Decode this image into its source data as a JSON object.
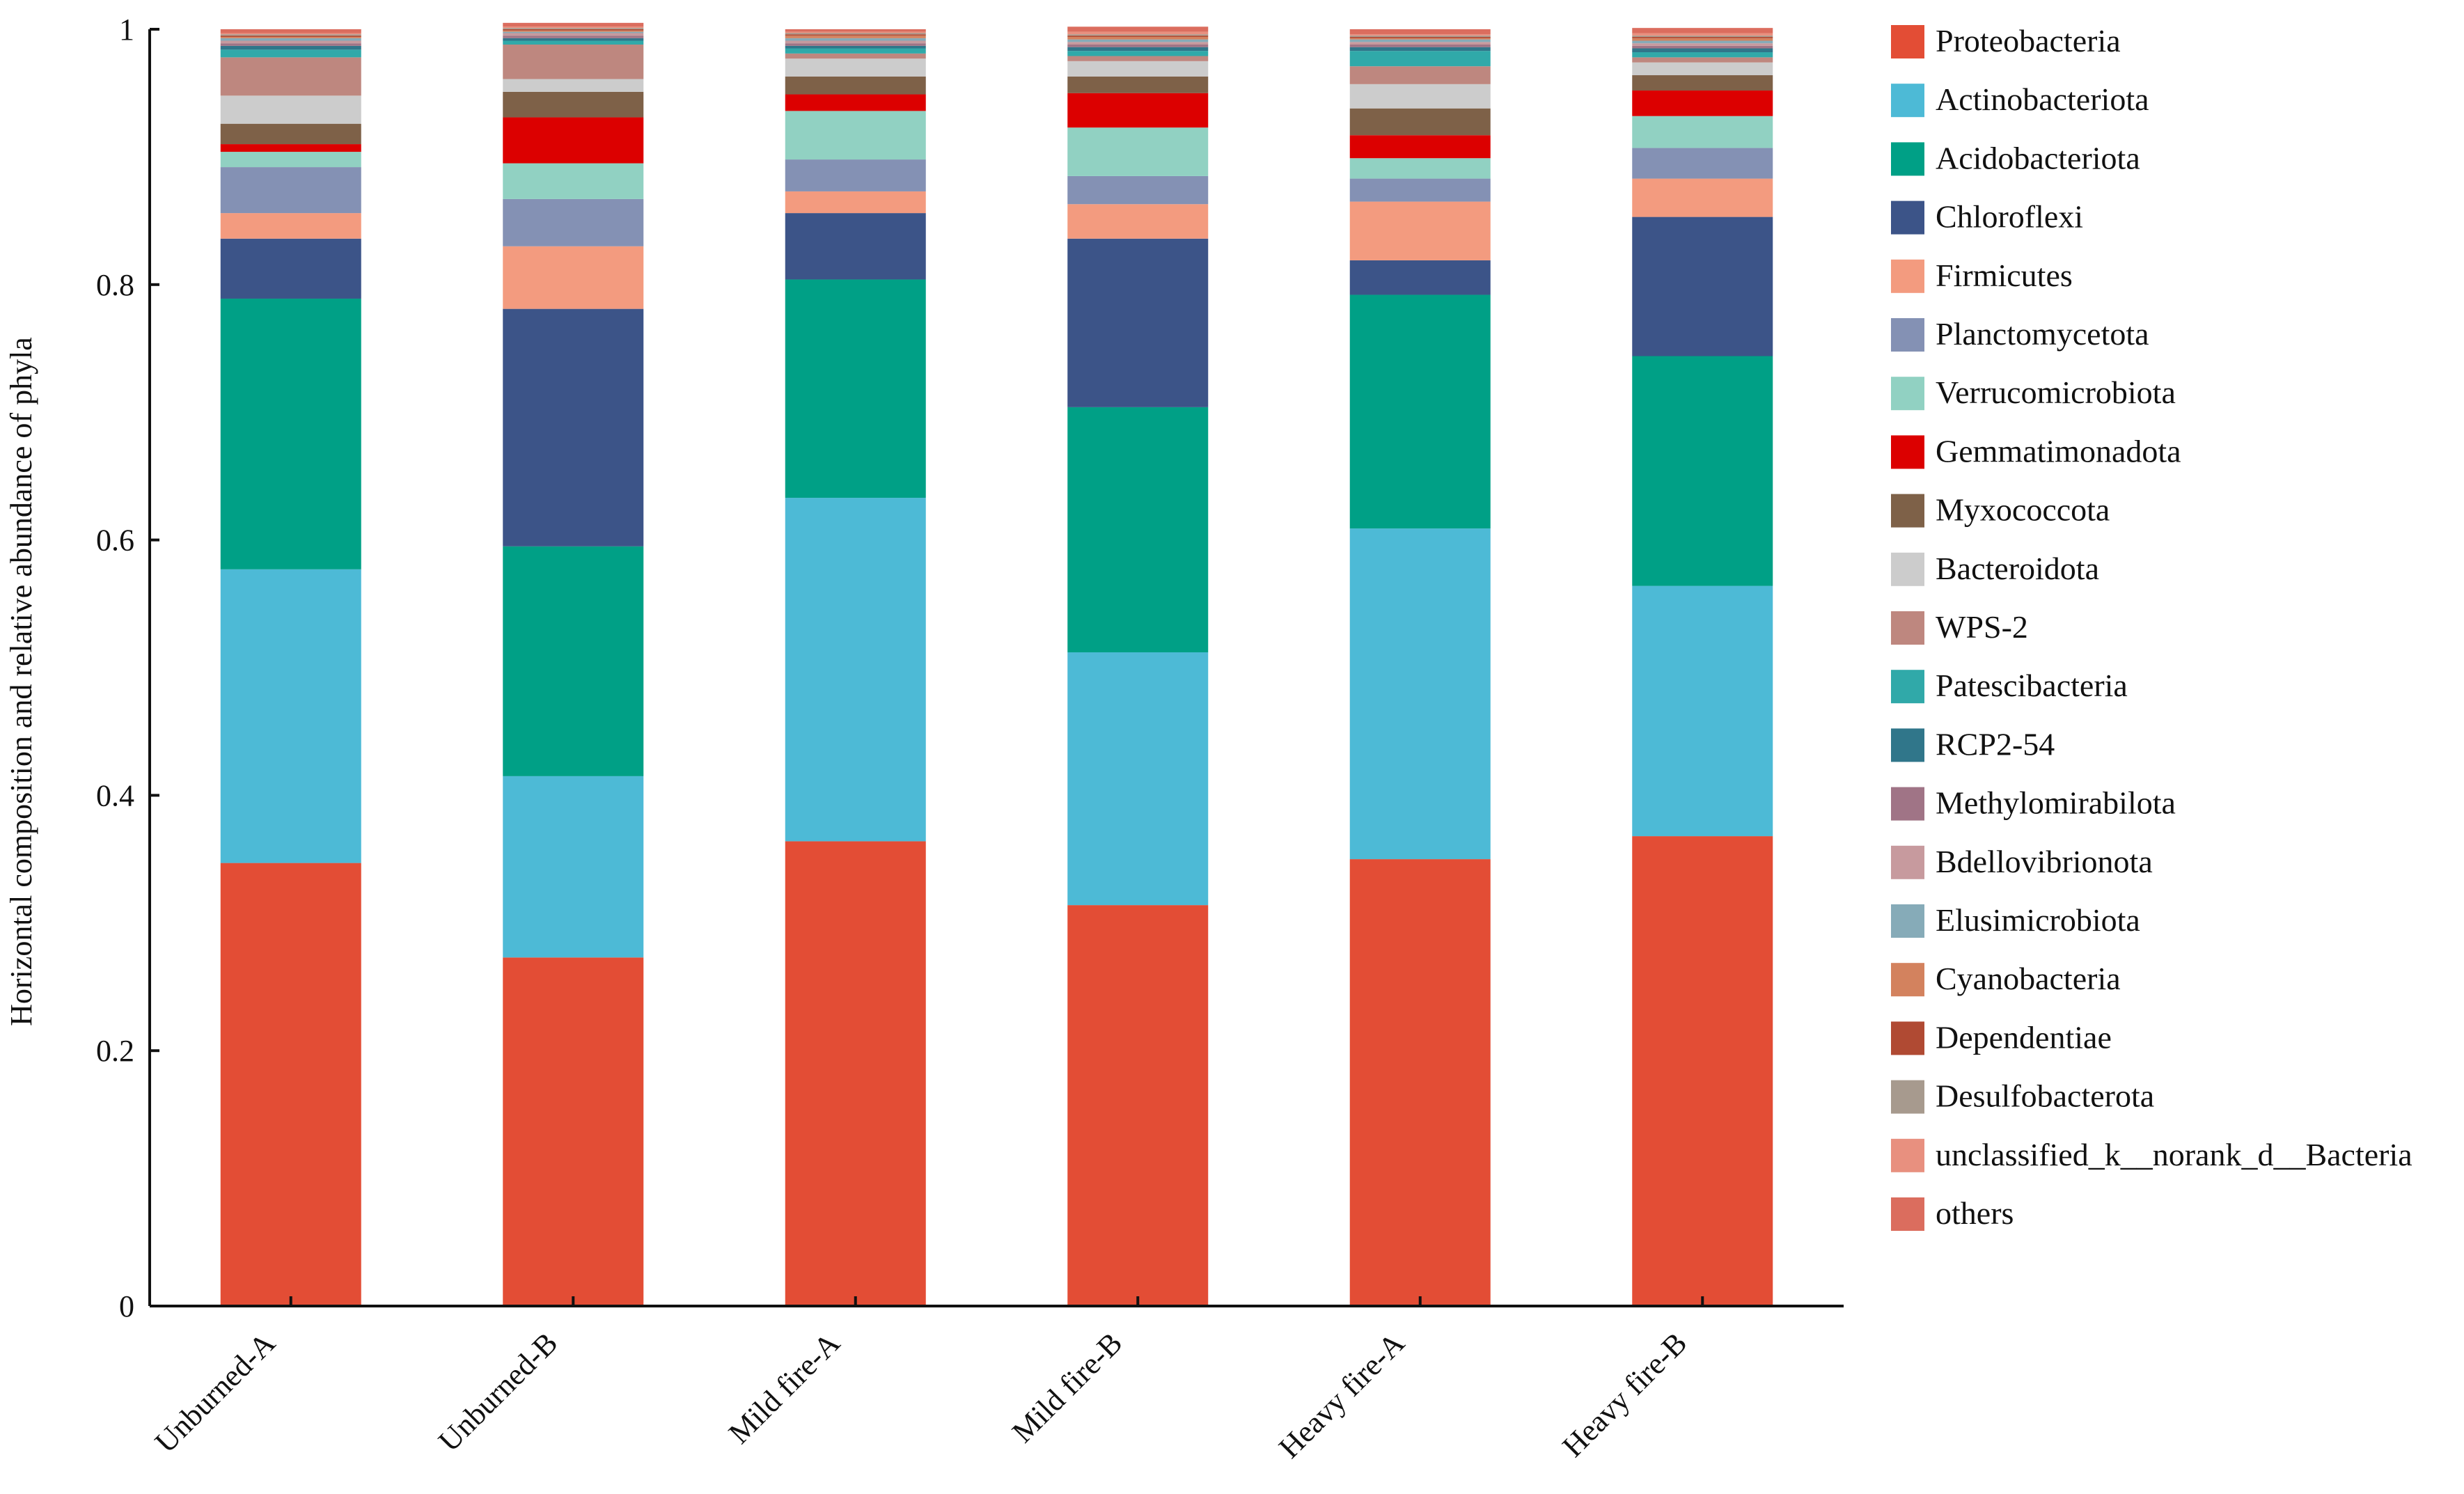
{
  "chart_data": {
    "type": "bar",
    "stacked": true,
    "title": "",
    "xlabel": "",
    "ylabel": "Horizontal composition and relative abundance of phyla",
    "ylim": [
      0,
      1
    ],
    "yticks": [
      0,
      0.2,
      0.4,
      0.6,
      0.8,
      1
    ],
    "ytick_labels": [
      "0",
      "0.2",
      "0.4",
      "0.6",
      "0.8",
      "1"
    ],
    "categories": [
      "Unburned-A",
      "Unburned-B",
      "Mild fire-A",
      "Mild fire-B",
      "Heavy fire-A",
      "Heavy fire-B"
    ],
    "legend_position": "right",
    "series": [
      {
        "name": "Proteobacteria",
        "color": "#E34D35",
        "values": [
          0.347,
          0.273,
          0.364,
          0.314,
          0.35,
          0.368
        ]
      },
      {
        "name": "Actinobacteriota",
        "color": "#4DBAD6",
        "values": [
          0.23,
          0.142,
          0.269,
          0.198,
          0.259,
          0.196
        ]
      },
      {
        "name": "Acidobacteriota",
        "color": "#00A086",
        "values": [
          0.212,
          0.18,
          0.171,
          0.192,
          0.183,
          0.18
        ]
      },
      {
        "name": "Chloroflexi",
        "color": "#3C5488",
        "values": [
          0.047,
          0.186,
          0.052,
          0.132,
          0.027,
          0.109
        ]
      },
      {
        "name": "Firmicutes",
        "color": "#F39B7F",
        "values": [
          0.02,
          0.049,
          0.017,
          0.027,
          0.046,
          0.03
        ]
      },
      {
        "name": "Planctomycetota",
        "color": "#8491B4",
        "values": [
          0.036,
          0.037,
          0.025,
          0.022,
          0.018,
          0.024
        ]
      },
      {
        "name": "Verrucomicrobiota",
        "color": "#91D1C2",
        "values": [
          0.012,
          0.028,
          0.038,
          0.038,
          0.016,
          0.025
        ]
      },
      {
        "name": "Gemmatimonadota",
        "color": "#DC0000",
        "values": [
          0.006,
          0.036,
          0.013,
          0.027,
          0.018,
          0.02
        ]
      },
      {
        "name": "Myxococcota",
        "color": "#7E6148",
        "values": [
          0.016,
          0.02,
          0.014,
          0.013,
          0.021,
          0.012
        ]
      },
      {
        "name": "Bacteroidota",
        "color": "#CCCCCC",
        "values": [
          0.022,
          0.01,
          0.014,
          0.012,
          0.019,
          0.01
        ]
      },
      {
        "name": "WPS-2",
        "color": "#BE877F",
        "values": [
          0.03,
          0.027,
          0.004,
          0.004,
          0.014,
          0.004
        ]
      },
      {
        "name": "Patescibacteria",
        "color": "#30A9A9",
        "values": [
          0.006,
          0.003,
          0.004,
          0.004,
          0.012,
          0.004
        ]
      },
      {
        "name": "RCP2-54",
        "color": "#30768A",
        "values": [
          0.003,
          0.002,
          0.002,
          0.003,
          0.003,
          0.003
        ]
      },
      {
        "name": "Methylomirabilota",
        "color": "#A07486",
        "values": [
          0.002,
          0.002,
          0.002,
          0.002,
          0.002,
          0.002
        ]
      },
      {
        "name": "Bdellovibrionota",
        "color": "#C79A9E",
        "values": [
          0.002,
          0.002,
          0.002,
          0.002,
          0.002,
          0.002
        ]
      },
      {
        "name": "Elusimicrobiota",
        "color": "#86ABB8",
        "values": [
          0.002,
          0.001,
          0.002,
          0.002,
          0.002,
          0.002
        ]
      },
      {
        "name": "Cyanobacteria",
        "color": "#D3825E",
        "values": [
          0.001,
          0.001,
          0.002,
          0.002,
          0.001,
          0.002
        ]
      },
      {
        "name": "Dependentiae",
        "color": "#B04A33",
        "values": [
          0.001,
          0.001,
          0.001,
          0.001,
          0.001,
          0.001
        ]
      },
      {
        "name": "Desulfobacterota",
        "color": "#A79A8E",
        "values": [
          0.001,
          0.001,
          0.001,
          0.001,
          0.001,
          0.001
        ]
      },
      {
        "name": "unclassified_k__norank_d__Bacteria",
        "color": "#E8907F",
        "values": [
          0.001,
          0.001,
          0.001,
          0.002,
          0.001,
          0.002
        ]
      },
      {
        "name": "others",
        "color": "#DB6D5E",
        "values": [
          0.003,
          0.003,
          0.002,
          0.004,
          0.004,
          0.004
        ]
      }
    ]
  }
}
